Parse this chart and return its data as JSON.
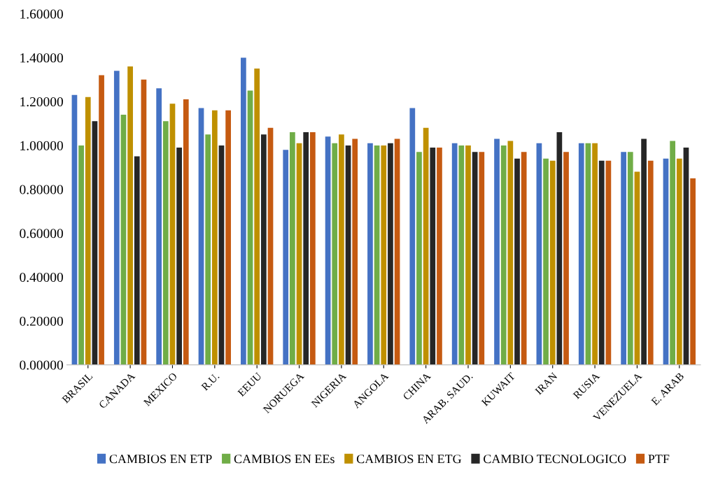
{
  "chart_data": {
    "type": "bar",
    "categories": [
      "BRASIL",
      "CANADA",
      "MEXICO",
      "R.U.",
      "EEUU",
      "NORUEGA",
      "NIGERIA",
      "ANGOLA",
      "CHINA",
      "ARAB. SAUD.",
      "KUWAIT",
      "IRAN",
      "RUSIA",
      "VENEZUELA",
      "E. ARAB"
    ],
    "series": [
      {
        "name": "CAMBIOS EN ETP",
        "color": "#4472c4",
        "values": [
          1.23,
          1.34,
          1.26,
          1.17,
          1.4,
          0.98,
          1.04,
          1.01,
          1.17,
          1.01,
          1.03,
          1.01,
          1.01,
          0.97,
          0.94
        ]
      },
      {
        "name": "CAMBIOS EN EEs",
        "color": "#70ad47",
        "values": [
          1.0,
          1.14,
          1.11,
          1.05,
          1.25,
          1.06,
          1.01,
          1.0,
          0.97,
          1.0,
          1.0,
          0.94,
          1.01,
          0.97,
          1.02
        ]
      },
      {
        "name": "CAMBIOS EN ETG",
        "color": "#bf9000",
        "values": [
          1.22,
          1.36,
          1.19,
          1.16,
          1.35,
          1.01,
          1.05,
          1.0,
          1.08,
          1.0,
          1.02,
          0.93,
          1.01,
          0.88,
          0.94
        ]
      },
      {
        "name": "CAMBIO TECNOLOGICO",
        "color": "#262626",
        "values": [
          1.11,
          0.95,
          0.99,
          1.0,
          1.05,
          1.06,
          1.0,
          1.01,
          0.99,
          0.97,
          0.94,
          1.06,
          0.93,
          1.03,
          0.99
        ]
      },
      {
        "name": "PTF",
        "color": "#c55a11",
        "values": [
          1.32,
          1.3,
          1.21,
          1.16,
          1.08,
          1.06,
          1.03,
          1.03,
          0.99,
          0.97,
          0.97,
          0.97,
          0.93,
          0.93,
          0.85
        ]
      }
    ],
    "ylim": [
      0,
      1.6
    ],
    "yticks": [
      {
        "value": 0,
        "label": "0.00000"
      },
      {
        "value": 0.2,
        "label": "0.20000"
      },
      {
        "value": 0.4,
        "label": "0.40000"
      },
      {
        "value": 0.6,
        "label": "0.60000"
      },
      {
        "value": 0.8,
        "label": "0.80000"
      },
      {
        "value": 1.0,
        "label": "1.00000"
      },
      {
        "value": 1.2,
        "label": "1.20000"
      },
      {
        "value": 1.4,
        "label": "1.40000"
      },
      {
        "value": 1.6,
        "label": "1.60000"
      }
    ],
    "grid": false,
    "legend": "bottom"
  }
}
